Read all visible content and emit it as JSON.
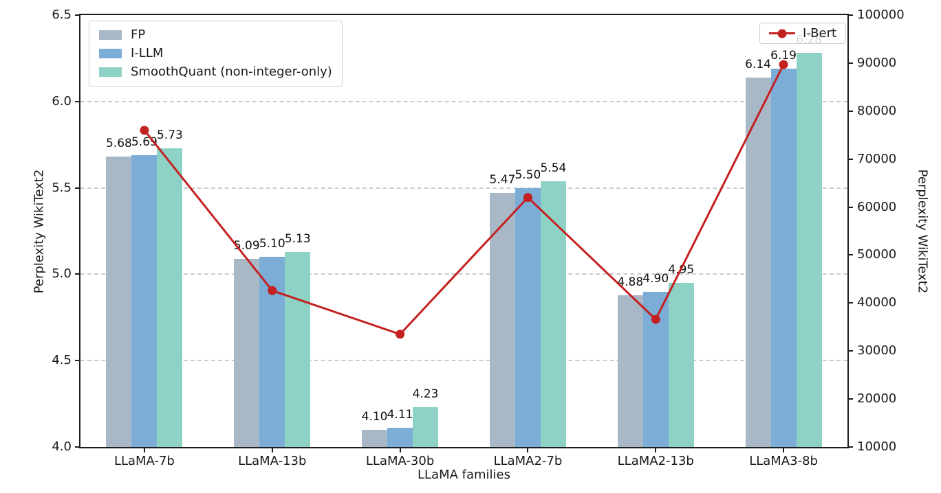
{
  "chart_data": {
    "type": "bar",
    "title": "",
    "categories": [
      "LLaMA-7b",
      "LLaMA-13b",
      "LLaMA-30b",
      "LLaMA2-7b",
      "LLaMA2-13b",
      "LLaMA3-8b"
    ],
    "xlabel": "LLaMA families",
    "left_axis": {
      "label": "Perplexity WikiText2",
      "min": 4.0,
      "max": 6.5,
      "tick_step": 0.5,
      "tick_labels": [
        "4.0",
        "4.5",
        "5.0",
        "5.5",
        "6.0",
        "6.5"
      ]
    },
    "right_axis": {
      "label": "Perplexity WikiText2",
      "min": 10000,
      "max": 100000,
      "tick_step": 10000,
      "tick_labels": [
        "10000",
        "20000",
        "30000",
        "40000",
        "50000",
        "60000",
        "70000",
        "80000",
        "90000",
        "100000"
      ]
    },
    "grid": {
      "horizontal_dashed_at": [
        4.5,
        5.0,
        5.5,
        6.0
      ],
      "color": "#cccccc"
    },
    "bar_series": [
      {
        "name": "FP",
        "color": "#a9b8c7",
        "axis": "left",
        "values": [
          5.68,
          5.09,
          4.1,
          5.47,
          4.88,
          6.14
        ]
      },
      {
        "name": "I-LLM",
        "color": "#7cadd6",
        "axis": "left",
        "values": [
          5.69,
          5.1,
          4.11,
          5.5,
          4.9,
          6.19
        ]
      },
      {
        "name": "SmoothQuant (non-integer-only)",
        "color": "#8dd2c5",
        "axis": "left",
        "values": [
          5.73,
          5.13,
          4.23,
          5.54,
          4.95,
          6.28
        ]
      }
    ],
    "bar_value_labels_decimals": 2,
    "line_series": [
      {
        "name": "I-Bert",
        "color": "#c42020",
        "axis": "right",
        "values": [
          76000,
          42600,
          33500,
          62000,
          36600,
          89700
        ],
        "note": "values estimated from pixel positions against right axis gridlines"
      }
    ],
    "legend_bars_position": "upper left",
    "legend_line_position": "upper right",
    "axis_color": "#1c1c1c",
    "text_color": "#1a1a1a"
  }
}
